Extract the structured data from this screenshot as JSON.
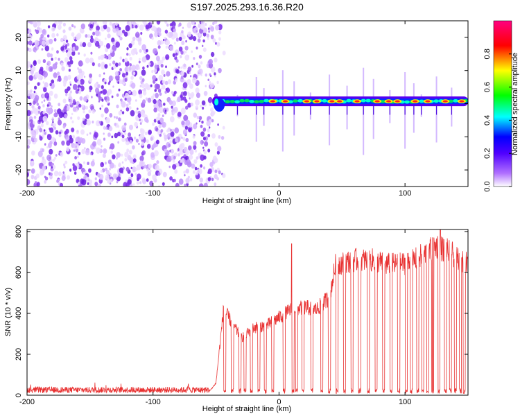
{
  "title": "S197.2025.293.16.36.R20",
  "chart_data": [
    {
      "type": "heatmap",
      "name": "spectrogram",
      "xlabel": "Height of straight line (km)",
      "ylabel": "Frequency (Hz)",
      "xlim": [
        -200,
        150
      ],
      "ylim": [
        -25,
        25
      ],
      "xticks": [
        -200,
        -100,
        0,
        100
      ],
      "yticks": [
        -20,
        -10,
        0,
        10,
        20
      ],
      "noise_region_x": [
        -200,
        -50
      ],
      "signal_start_x": -53,
      "signal_band_hz": [
        -1.5,
        2
      ],
      "hot_spots_x": [
        -5,
        5,
        22,
        30,
        42,
        48,
        62,
        78,
        87,
        94,
        108,
        118,
        132,
        145
      ],
      "spike_x": [
        -33,
        -18,
        -12,
        3,
        12,
        25,
        40,
        54,
        67,
        75,
        88,
        100,
        107,
        113,
        125,
        137
      ],
      "colorbar": {
        "label": "Normalized spectral amplitude",
        "ticks": [
          0.0,
          0.2,
          0.4,
          0.6,
          0.8
        ],
        "range": [
          0,
          1
        ],
        "colors": [
          "#ffffff",
          "#7a00ff",
          "#0000ff",
          "#00ffff",
          "#00ff00",
          "#ffff00",
          "#ff0000",
          "#ff0066"
        ]
      }
    },
    {
      "type": "line",
      "name": "snr",
      "xlabel": "Height of straight line (km)",
      "ylabel": "SNR (10 * v/v)",
      "xlim": [
        -200,
        150
      ],
      "ylim": [
        0,
        810
      ],
      "xticks": [
        -200,
        -100,
        0,
        100
      ],
      "yticks": [
        0,
        200,
        400,
        600,
        800
      ],
      "series_color": "#e83030",
      "baseline": 20,
      "envelope": [
        {
          "x": -200,
          "y": 20
        },
        {
          "x": -55,
          "y": 20
        },
        {
          "x": -50,
          "y": 60
        },
        {
          "x": -44,
          "y": 420
        },
        {
          "x": -30,
          "y": 280
        },
        {
          "x": -20,
          "y": 330
        },
        {
          "x": -10,
          "y": 340
        },
        {
          "x": 0,
          "y": 380
        },
        {
          "x": 10,
          "y": 420
        },
        {
          "x": 20,
          "y": 430
        },
        {
          "x": 30,
          "y": 420
        },
        {
          "x": 40,
          "y": 480
        },
        {
          "x": 45,
          "y": 640
        },
        {
          "x": 60,
          "y": 660
        },
        {
          "x": 75,
          "y": 660
        },
        {
          "x": 85,
          "y": 640
        },
        {
          "x": 95,
          "y": 640
        },
        {
          "x": 105,
          "y": 650
        },
        {
          "x": 115,
          "y": 690
        },
        {
          "x": 125,
          "y": 730
        },
        {
          "x": 135,
          "y": 700
        },
        {
          "x": 150,
          "y": 640
        }
      ],
      "dropouts_x": [
        -43,
        -37,
        -31,
        -27,
        -22,
        -16,
        -11,
        -5,
        4,
        11,
        14,
        19,
        26,
        34,
        40,
        46,
        52,
        58,
        64,
        71,
        77,
        83,
        89,
        95,
        101,
        105,
        110,
        114,
        118,
        122,
        127,
        132,
        136,
        140,
        144,
        147
      ],
      "spikes": [
        {
          "x": 10,
          "y": 740
        },
        {
          "x": 128,
          "y": 810
        },
        {
          "x": 122,
          "y": 770
        }
      ]
    }
  ]
}
